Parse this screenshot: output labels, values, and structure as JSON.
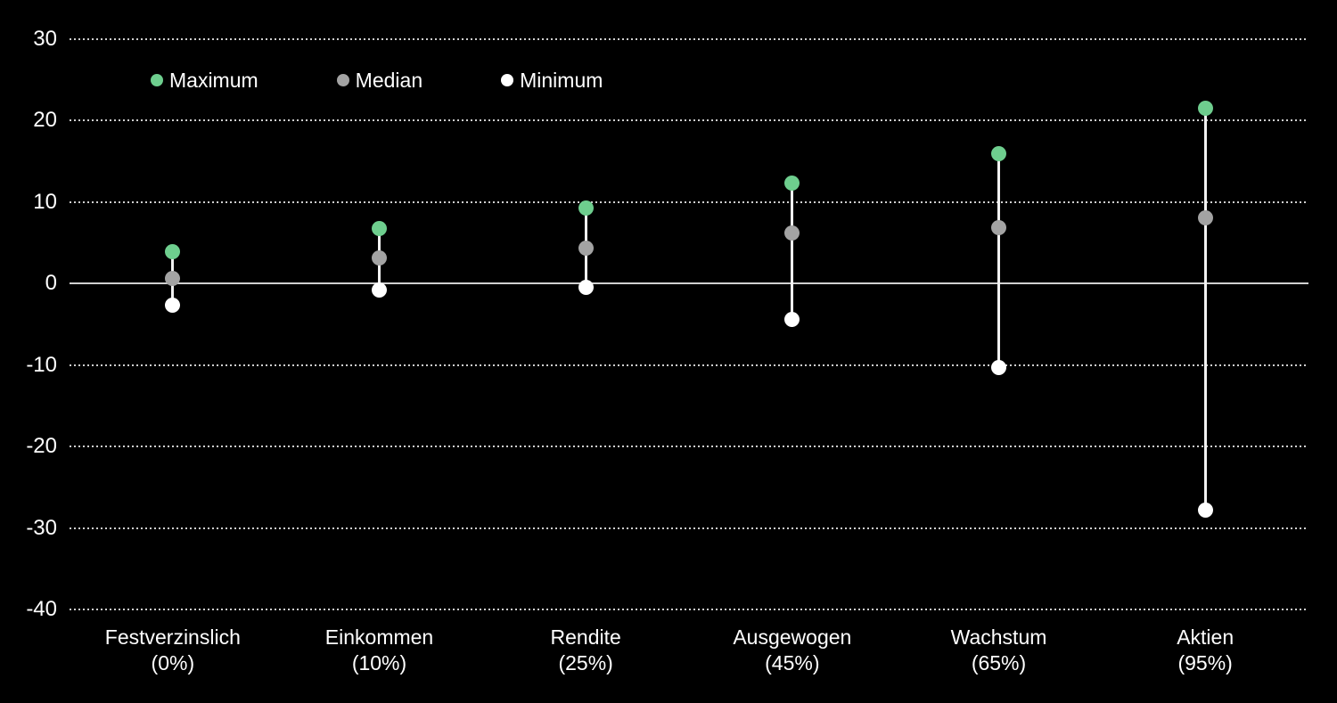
{
  "colors": {
    "background": "#000000",
    "text": "#FFFFFF",
    "grid": "#CFCFCF",
    "zero_line": "#D0D0D0",
    "whisker": "#F2F2F2",
    "maximum": "#6ECE8E",
    "median": "#A3A3A3",
    "minimum": "#FFFFFF"
  },
  "chart_data": {
    "type": "scatter",
    "subtype": "high-median-low range dot plot",
    "title": "",
    "xlabel": "",
    "ylabel": "",
    "categories": [
      {
        "label": "Festverzinslich",
        "sublabel": "(0%)"
      },
      {
        "label": "Einkommen",
        "sublabel": "(10%)"
      },
      {
        "label": "Rendite",
        "sublabel": "(25%)"
      },
      {
        "label": "Ausgewogen",
        "sublabel": "(45%)"
      },
      {
        "label": "Wachstum",
        "sublabel": "(65%)"
      },
      {
        "label": "Aktien",
        "sublabel": "(95%)"
      }
    ],
    "series": [
      {
        "name": "Maximum",
        "color": "#6ECE8E",
        "values": [
          3.9,
          6.8,
          9.3,
          12.3,
          15.9,
          21.5
        ]
      },
      {
        "name": "Median",
        "color": "#A3A3A3",
        "values": [
          0.6,
          3.2,
          4.3,
          6.2,
          6.9,
          8.1
        ]
      },
      {
        "name": "Minimum",
        "color": "#FFFFFF",
        "values": [
          -2.6,
          -0.8,
          -0.5,
          -4.4,
          -10.3,
          -27.8
        ]
      }
    ],
    "yticks": [
      30,
      20,
      10,
      0,
      -10,
      -20,
      -30,
      -40
    ],
    "ylim": [
      -40,
      30
    ],
    "grid": "dotted horizontal gridlines",
    "zero_line": "solid",
    "legend_position": "top-left"
  }
}
